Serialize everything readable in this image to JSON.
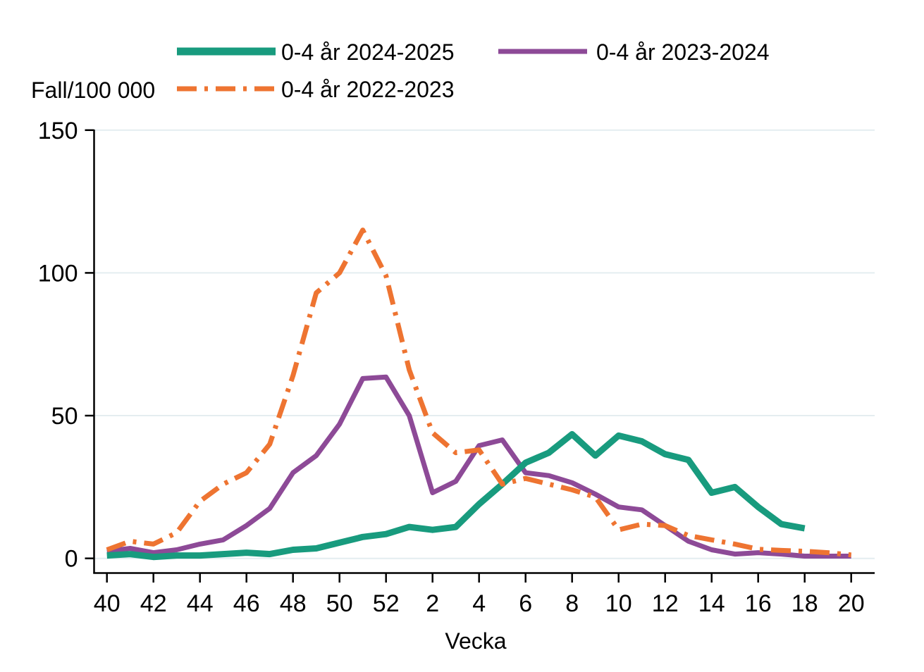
{
  "chart_data": {
    "type": "line",
    "title": "",
    "ylabel": "Fall/100 000",
    "xlabel": "Vecka",
    "x_unit": "vecka (week number, season spanning week 40 to week 20)",
    "categories": [
      40,
      41,
      42,
      43,
      44,
      45,
      46,
      47,
      48,
      49,
      50,
      51,
      52,
      1,
      2,
      3,
      4,
      5,
      6,
      7,
      8,
      9,
      10,
      11,
      12,
      13,
      14,
      15,
      16,
      17,
      18,
      19,
      20
    ],
    "x_ticklabels": [
      "40",
      "42",
      "44",
      "46",
      "48",
      "50",
      "52",
      "2",
      "4",
      "6",
      "8",
      "10",
      "12",
      "14",
      "16",
      "18",
      "20"
    ],
    "y_ticks": [
      0,
      50,
      100,
      150
    ],
    "ylim": [
      0,
      150
    ],
    "grid": "horizontal",
    "legend_position": "top",
    "axis_color": "#000000",
    "grid_color": "#e4edf0",
    "series": [
      {
        "name": "0-4 år 2024-2025",
        "color": "#189b7e",
        "style": "solid",
        "stroke_width": 9,
        "values": [
          1,
          1.5,
          0.5,
          1,
          1,
          1.5,
          2,
          1.5,
          3,
          3.5,
          5.5,
          7.5,
          8.5,
          11,
          10,
          11,
          19,
          26,
          33.5,
          37,
          43.5,
          36,
          43,
          41,
          36.5,
          34.5,
          23,
          25,
          18,
          12,
          10.5,
          null,
          null
        ]
      },
      {
        "name": "0-4 år 2023-2024",
        "color": "#8d4a97",
        "style": "solid",
        "stroke_width": 7,
        "values": [
          2.5,
          3.5,
          2,
          3,
          5,
          6.5,
          11.5,
          17.5,
          30,
          36,
          47,
          63,
          63.5,
          50,
          23,
          27,
          39.5,
          41.5,
          30,
          29,
          26.5,
          22.5,
          18,
          17,
          11.5,
          6,
          3,
          1.5,
          2,
          1.5,
          0.8,
          0.8,
          0.8
        ]
      },
      {
        "name": "0-4 år 2022-2023",
        "color": "#ee7431",
        "style": "dashdot",
        "stroke_width": 7,
        "values": [
          3,
          6,
          5,
          9,
          20,
          26,
          30,
          40,
          64,
          93,
          100,
          115,
          99,
          66,
          44,
          37,
          38,
          26,
          28,
          26,
          24,
          21.5,
          10,
          12,
          11.5,
          8,
          6.5,
          5,
          3.2,
          2.8,
          2.5,
          2,
          1.2
        ]
      }
    ]
  }
}
